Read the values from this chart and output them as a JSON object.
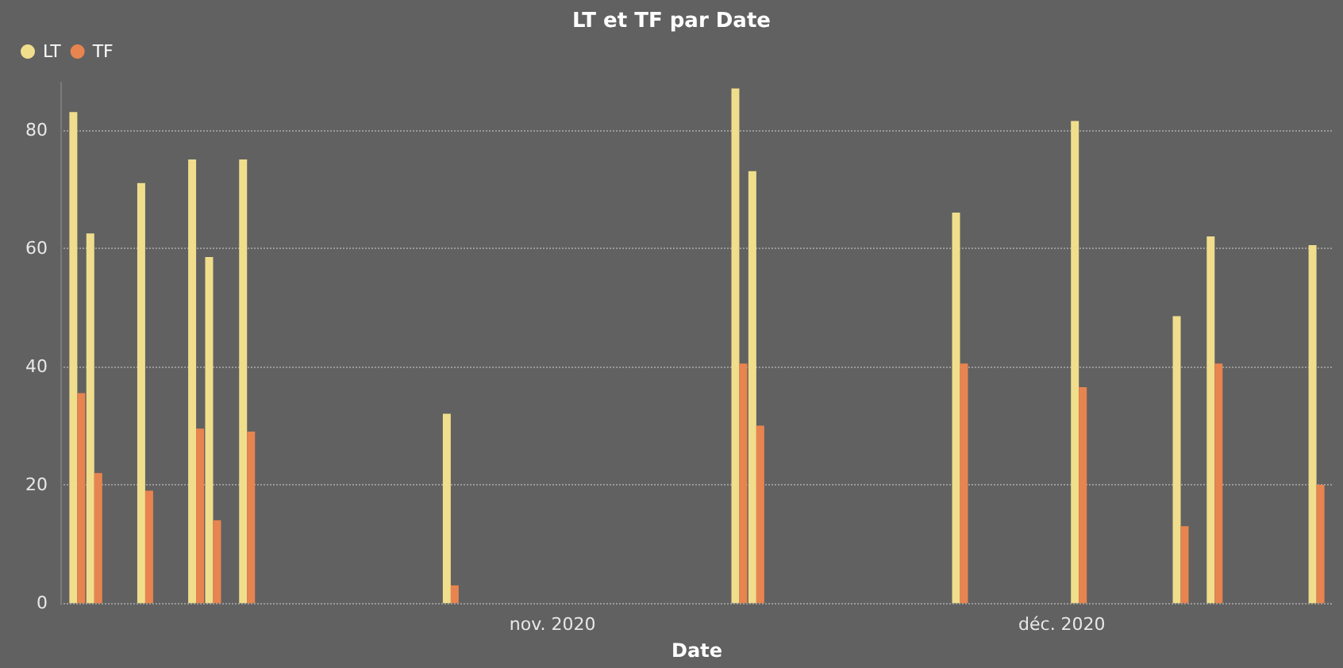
{
  "chart_data": {
    "type": "bar",
    "title": "LT et TF par Date",
    "xlabel": "Date",
    "x": [
      "2020-10-04",
      "2020-10-05",
      "2020-10-08",
      "2020-10-11",
      "2020-10-12",
      "2020-10-14",
      "2020-10-26",
      "2020-11-12",
      "2020-11-13",
      "2020-11-25",
      "2020-12-02",
      "2020-12-08",
      "2020-12-10",
      "2020-12-16"
    ],
    "series": [
      {
        "name": "LT",
        "color": "#f0de8c",
        "values": [
          83,
          62.5,
          71,
          75,
          58.5,
          75,
          32,
          87,
          73,
          66,
          81.5,
          48.5,
          62,
          60.5
        ]
      },
      {
        "name": "TF",
        "color": "#e8844f",
        "values": [
          35.5,
          22,
          19,
          29.5,
          14,
          29,
          3,
          40.5,
          30,
          40.5,
          36.5,
          13,
          40.5,
          20
        ]
      }
    ],
    "xlim": [
      "2020-10-03",
      "2020-12-17"
    ],
    "xticks": [
      {
        "value": "2020-11-01",
        "label": "nov. 2020"
      },
      {
        "value": "2020-12-01",
        "label": "déc. 2020"
      }
    ],
    "ylim": [
      0,
      88
    ],
    "yticks": [
      0,
      20,
      40,
      60,
      80
    ],
    "grid": "y",
    "legend": "top left"
  }
}
